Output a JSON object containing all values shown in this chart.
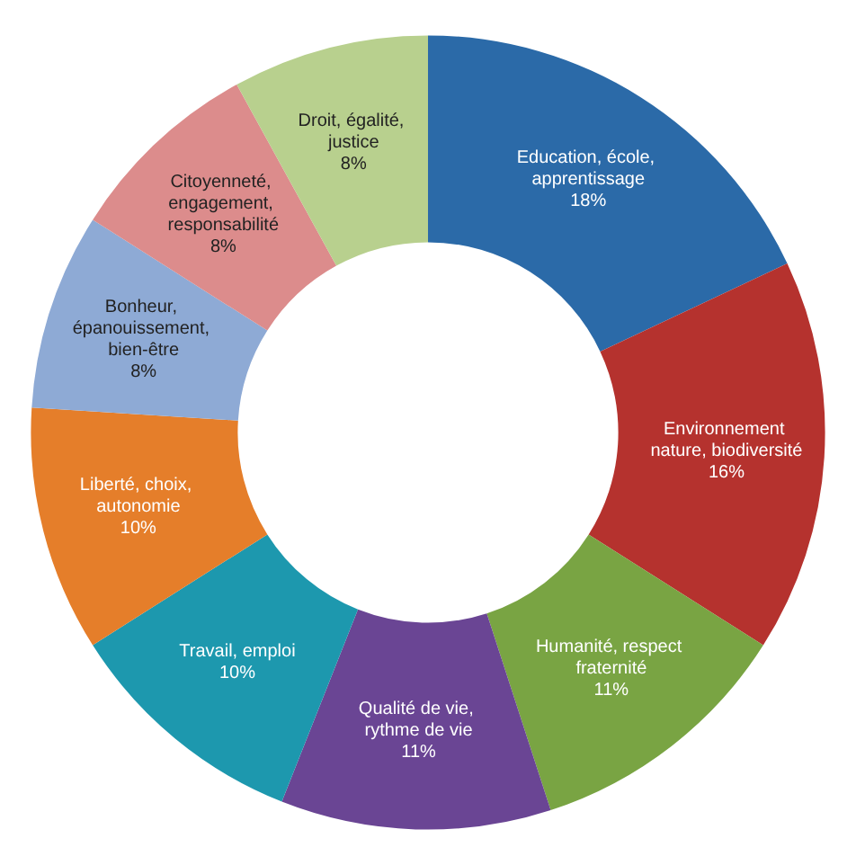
{
  "chart_data": {
    "type": "donut",
    "categories": [
      "Education, école, apprentissage",
      "Environnement nature, biodiversité",
      "Humanité, respect fraternité",
      "Qualité de vie, rythme de vie",
      "Travail, emploi",
      "Liberté, choix, autonomie",
      "Bonheur, épanouissement, bien-être",
      "Citoyenneté, engagement, responsabilité",
      "Droit, égalité, justice"
    ],
    "values": [
      18,
      16,
      11,
      11,
      10,
      10,
      8,
      8,
      8
    ],
    "colors": [
      "#2b6aa8",
      "#b5322e",
      "#79a443",
      "#6a4594",
      "#1d98ae",
      "#e57e2a",
      "#8eaad5",
      "#dc8c8c",
      "#b8d08e"
    ],
    "value_labels": [
      "18%",
      "16%",
      "11%",
      "11%",
      "10%",
      "10%",
      "8%",
      "8%",
      "8%"
    ],
    "legend": false
  }
}
